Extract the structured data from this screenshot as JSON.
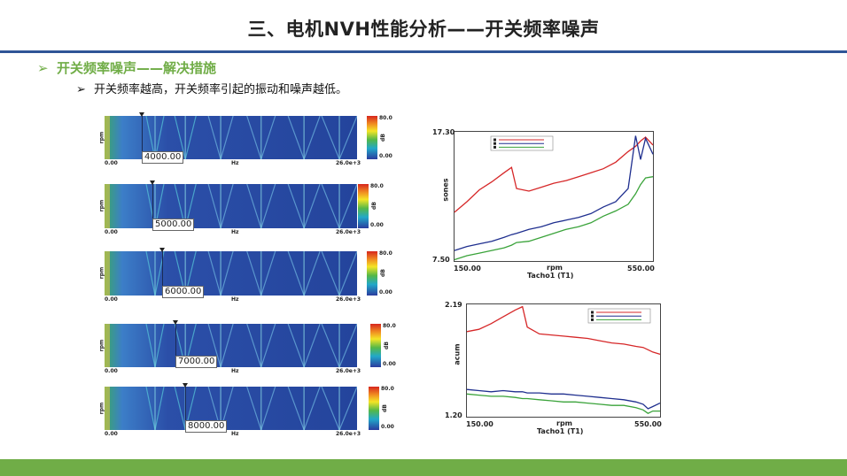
{
  "title": "三、电机NVH性能分析——开关频率噪声",
  "bullet1": {
    "arrow": "➢",
    "text": "开关频率噪声——解决措施"
  },
  "bullet2": {
    "arrow": "➢",
    "text": "开关频率越高，开关频率引起的振动和噪声越低。"
  },
  "spectrograms": [
    {
      "rpm_label": "4000.00",
      "x_start": "0.00",
      "x_unit": "Hz",
      "x_end": "26.0e+3",
      "y_label": "rpm",
      "scale_top": "80.0",
      "scale_unit": "dB",
      "scale_bottom": "0.00"
    },
    {
      "rpm_label": "5000.00",
      "x_start": "0.00",
      "x_unit": "Hz",
      "x_end": "26.0e+3",
      "y_label": "rpm",
      "scale_top": "80.0",
      "scale_unit": "dB",
      "scale_bottom": "0.00"
    },
    {
      "rpm_label": "6000.00",
      "x_start": "0.00",
      "x_unit": "Hz",
      "x_end": "26.0e+3",
      "y_label": "rpm",
      "scale_top": "80.0",
      "scale_unit": "dB",
      "scale_bottom": "0.00"
    },
    {
      "rpm_label": "7000.00",
      "x_start": "0.00",
      "x_unit": "Hz",
      "x_end": "26.0e+3",
      "y_label": "rpm",
      "scale_top": "80.0",
      "scale_unit": "dB",
      "scale_bottom": "0.00"
    },
    {
      "rpm_label": "8000.00",
      "x_start": "0.00",
      "x_unit": "Hz",
      "x_end": "26.0e+3",
      "y_label": "rpm",
      "scale_top": "80.0",
      "scale_unit": "dB",
      "scale_bottom": "0.00"
    }
  ],
  "chart_data": [
    {
      "type": "line",
      "xlabel": "rpm",
      "xlabel2": "Tacho1 (T1)",
      "ylabel": "sones",
      "x_start_label": "150.00",
      "x_end_label": "550.00",
      "y_top_label": "17.30",
      "y_bottom_label": "7.50",
      "xlim": [
        150,
        550
      ],
      "ylim": [
        7.5,
        17.3
      ],
      "legend_position": "top-left",
      "x": [
        150,
        175,
        200,
        225,
        250,
        265,
        275,
        300,
        325,
        350,
        375,
        400,
        425,
        450,
        475,
        500,
        515,
        525,
        535,
        550
      ],
      "series": [
        {
          "color": "#d62728",
          "values": [
            11.2,
            12.0,
            12.9,
            13.5,
            14.2,
            14.6,
            13.0,
            12.8,
            13.1,
            13.4,
            13.6,
            13.9,
            14.2,
            14.5,
            15.0,
            15.8,
            16.2,
            16.6,
            16.9,
            16.3
          ]
        },
        {
          "color": "#1f2f8f",
          "values": [
            8.3,
            8.6,
            8.8,
            9.0,
            9.3,
            9.5,
            9.6,
            9.9,
            10.1,
            10.4,
            10.6,
            10.8,
            11.1,
            11.6,
            12.0,
            13.0,
            17.0,
            15.2,
            16.8,
            15.6
          ]
        },
        {
          "color": "#3aa33a",
          "values": [
            7.6,
            7.9,
            8.1,
            8.3,
            8.5,
            8.7,
            8.9,
            9.0,
            9.3,
            9.6,
            9.9,
            10.1,
            10.4,
            10.9,
            11.3,
            11.8,
            12.6,
            13.3,
            13.8,
            13.9
          ]
        }
      ]
    },
    {
      "type": "line",
      "xlabel": "rpm",
      "xlabel2": "Tacho1 (T1)",
      "ylabel": "acum",
      "x_start_label": "150.00",
      "x_end_label": "550.00",
      "y_top_label": "2.19",
      "y_bottom_label": "1.20",
      "xlim": [
        150,
        550
      ],
      "ylim": [
        1.2,
        2.19
      ],
      "legend_position": "top-right",
      "x": [
        150,
        175,
        200,
        225,
        250,
        265,
        275,
        300,
        325,
        350,
        375,
        400,
        425,
        450,
        475,
        500,
        515,
        525,
        535,
        550
      ],
      "series": [
        {
          "color": "#d62728",
          "values": [
            1.95,
            1.97,
            2.02,
            2.08,
            2.14,
            2.17,
            1.99,
            1.93,
            1.92,
            1.91,
            1.9,
            1.89,
            1.87,
            1.85,
            1.84,
            1.82,
            1.81,
            1.79,
            1.77,
            1.75
          ]
        },
        {
          "color": "#1f2f8f",
          "values": [
            1.44,
            1.43,
            1.42,
            1.43,
            1.42,
            1.42,
            1.41,
            1.41,
            1.4,
            1.4,
            1.39,
            1.38,
            1.37,
            1.36,
            1.35,
            1.33,
            1.31,
            1.27,
            1.29,
            1.32
          ]
        },
        {
          "color": "#3aa33a",
          "values": [
            1.4,
            1.39,
            1.38,
            1.38,
            1.37,
            1.36,
            1.36,
            1.35,
            1.34,
            1.33,
            1.33,
            1.32,
            1.31,
            1.3,
            1.3,
            1.28,
            1.26,
            1.23,
            1.25,
            1.25
          ]
        }
      ]
    }
  ]
}
